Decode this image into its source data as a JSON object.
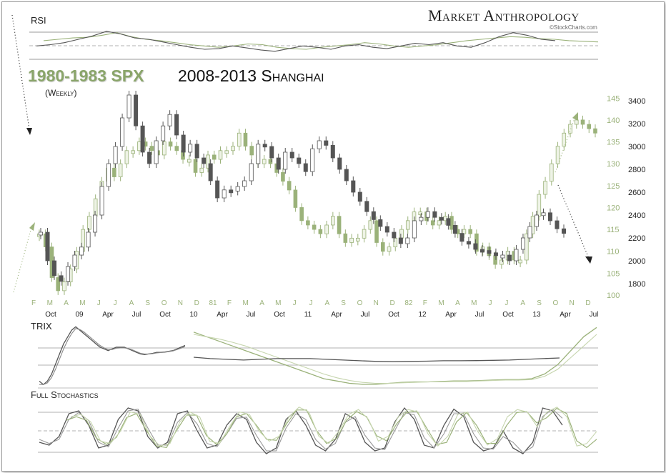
{
  "brand": {
    "name": "Market Anthropology",
    "credit": "©StockCharts.com"
  },
  "titles": {
    "green": "1980-1983 SPX",
    "dark": "2008-2013 Shanghai",
    "sub": "(Weekly)"
  },
  "panels": {
    "rsi": "RSI",
    "trix": "TRIX",
    "stoch": "Full Stochastics"
  },
  "colors": {
    "green": "#9bb27a",
    "green_light": "#c6d5ae",
    "dark": "#555555",
    "grid": "#a0a0a0",
    "frame": "#9a9a9a"
  },
  "chart_data": {
    "type": "candlestick",
    "x_top_labels": [
      "F",
      "M",
      "A",
      "M",
      "J",
      "J",
      "A",
      "S",
      "O",
      "N",
      "D",
      "81",
      "F",
      "M",
      "A",
      "M",
      "J",
      "J",
      "A",
      "S",
      "O",
      "N",
      "D",
      "82",
      "F",
      "M",
      "A",
      "M",
      "J",
      "J",
      "A",
      "S",
      "O",
      "N",
      "D"
    ],
    "x_bottom_labels": [
      "Oct",
      "09",
      "Apr",
      "Jul",
      "Oct",
      "10",
      "Apr",
      "Jul",
      "Oct",
      "11",
      "Apr",
      "Jul",
      "Oct",
      "12",
      "Apr",
      "Jul",
      "Oct",
      "13",
      "Apr",
      "Jul"
    ],
    "y_left_ticks": [
      100,
      105,
      110,
      115,
      120,
      125,
      130,
      135,
      140,
      145
    ],
    "y_right_ticks": [
      1800,
      2000,
      2200,
      2400,
      2600,
      2800,
      3000,
      3200,
      3400
    ],
    "series": [
      {
        "name": "1980-1983 SPX",
        "scale": "left",
        "values": [
          114,
          111,
          104,
          101,
          103,
          106,
          110,
          115,
          118,
          122,
          126,
          129,
          127,
          130,
          133,
          133,
          135,
          134,
          133,
          132,
          135,
          134,
          133,
          131,
          131,
          128,
          129,
          132,
          131,
          133,
          133,
          134,
          137,
          134,
          132,
          130,
          131,
          130,
          128,
          126,
          124,
          120,
          117,
          116,
          115,
          114,
          116,
          118,
          114,
          112,
          113,
          113,
          115,
          117,
          112,
          110,
          111,
          113,
          115,
          117,
          119,
          119,
          117,
          116,
          117,
          118,
          115,
          114,
          115,
          114,
          110,
          111,
          109,
          107,
          108,
          110,
          108,
          108,
          114,
          118,
          123,
          126,
          130,
          134,
          137,
          139,
          140,
          139,
          138,
          137
        ]
      },
      {
        "name": "2008-2013 Shanghai",
        "scale": "right",
        "values": [
          2250,
          2000,
          1870,
          1820,
          1950,
          2050,
          2120,
          2250,
          2400,
          2650,
          2850,
          3000,
          3250,
          3450,
          3180,
          2950,
          2850,
          3050,
          3180,
          3280,
          3100,
          2950,
          3020,
          2900,
          2850,
          2700,
          2550,
          2620,
          2610,
          2650,
          2700,
          2850,
          3020,
          3000,
          2900,
          2800,
          2950,
          2900,
          2850,
          2780,
          2980,
          3050,
          3010,
          2900,
          2800,
          2700,
          2600,
          2520,
          2430,
          2360,
          2300,
          2250,
          2200,
          2150,
          2200,
          2350,
          2380,
          2430,
          2380,
          2370,
          2310,
          2240,
          2170,
          2150,
          2100,
          2090,
          2070,
          2050,
          2050,
          2000,
          2100,
          2200,
          2300,
          2400,
          2420,
          2350,
          2280,
          2240
        ]
      }
    ],
    "ylim_left": [
      100,
      147
    ],
    "ylim_right": [
      1700,
      3500
    ],
    "rsi": {
      "spx": [
        58,
        60,
        62,
        63,
        66,
        70,
        64,
        60,
        58,
        55,
        52,
        50,
        48,
        50,
        53,
        52,
        48,
        46,
        45,
        48,
        50,
        52,
        55,
        53,
        50,
        48,
        50,
        52,
        55,
        58,
        60,
        62,
        64,
        63,
        61,
        60,
        58,
        57,
        56
      ],
      "shanghai": [
        50,
        52,
        55,
        60,
        65,
        72,
        68,
        62,
        60,
        56,
        52,
        48,
        45,
        46,
        50,
        47,
        44,
        42,
        46,
        50,
        48,
        45,
        50,
        52,
        48,
        46,
        50,
        54,
        52,
        55,
        50,
        48,
        55,
        64,
        70,
        66,
        60,
        58
      ]
    },
    "trix": {
      "shanghai_1": [
        -0.9,
        -1.0,
        -0.9,
        -0.7,
        -0.4,
        -0.1,
        0.2,
        0.4,
        0.6,
        0.7,
        0.6,
        0.5,
        0.4,
        0.3,
        0.2,
        0.1,
        0.05,
        0.0,
        0.05,
        0.1,
        0.1,
        0.1,
        0.05,
        0.0,
        -0.05,
        -0.1,
        -0.12,
        -0.1,
        -0.08,
        -0.05,
        -0.05,
        -0.04,
        -0.02,
        0.0,
        0.05,
        0.1,
        0.15
      ],
      "shanghai_2": [
        -1.0,
        -1.0,
        -0.95,
        -0.8,
        -0.55,
        -0.25,
        0.05,
        0.3,
        0.5,
        0.65,
        0.62,
        0.55,
        0.45,
        0.35,
        0.25,
        0.15,
        0.08,
        0.03,
        0.03,
        0.07,
        0.08,
        0.08,
        0.06,
        0.02,
        -0.03,
        -0.08,
        -0.1,
        -0.1,
        -0.09,
        -0.07,
        -0.06,
        -0.05,
        -0.03,
        -0.01,
        0.03,
        0.07,
        0.12
      ],
      "spx_1": [
        0.6,
        0.5,
        0.4,
        0.3,
        0.2,
        0.1,
        0.0,
        -0.1,
        -0.2,
        -0.3,
        -0.4,
        -0.45,
        -0.5,
        -0.52,
        -0.52,
        -0.5,
        -0.48,
        -0.47,
        -0.47,
        -0.46,
        -0.45,
        -0.45,
        -0.44,
        -0.43,
        -0.42,
        -0.42,
        -0.4,
        -0.3,
        -0.1,
        0.2,
        0.5,
        0.7
      ],
      "spx_2": [
        0.55,
        0.5,
        0.45,
        0.38,
        0.3,
        0.2,
        0.1,
        0.0,
        -0.1,
        -0.2,
        -0.3,
        -0.38,
        -0.44,
        -0.48,
        -0.5,
        -0.5,
        -0.49,
        -0.48,
        -0.47,
        -0.47,
        -0.46,
        -0.46,
        -0.45,
        -0.44,
        -0.43,
        -0.43,
        -0.42,
        -0.35,
        -0.2,
        0.05,
        0.3,
        0.55
      ]
    },
    "stoch": {
      "shanghai_1": [
        30,
        25,
        40,
        80,
        85,
        60,
        20,
        25,
        70,
        90,
        85,
        40,
        20,
        30,
        80,
        85,
        50,
        20,
        25,
        60,
        80,
        70,
        30,
        10,
        20,
        70,
        85,
        60,
        25,
        15,
        35,
        80,
        70,
        30,
        15,
        20,
        65,
        90,
        70,
        25,
        20,
        60,
        88,
        75,
        30,
        15,
        20,
        50,
        20,
        10,
        30,
        90,
        85,
        60
      ],
      "shanghai_2": [
        35,
        28,
        35,
        70,
        82,
        68,
        30,
        22,
        55,
        85,
        88,
        55,
        25,
        25,
        65,
        82,
        62,
        28,
        22,
        45,
        72,
        74,
        42,
        15,
        15,
        55,
        80,
        70,
        35,
        18,
        28,
        65,
        75,
        42,
        20,
        17,
        50,
        82,
        78,
        38,
        20,
        45,
        80,
        80,
        45,
        20,
        18,
        40,
        30,
        12,
        22,
        75,
        88,
        72
      ]
    }
  }
}
